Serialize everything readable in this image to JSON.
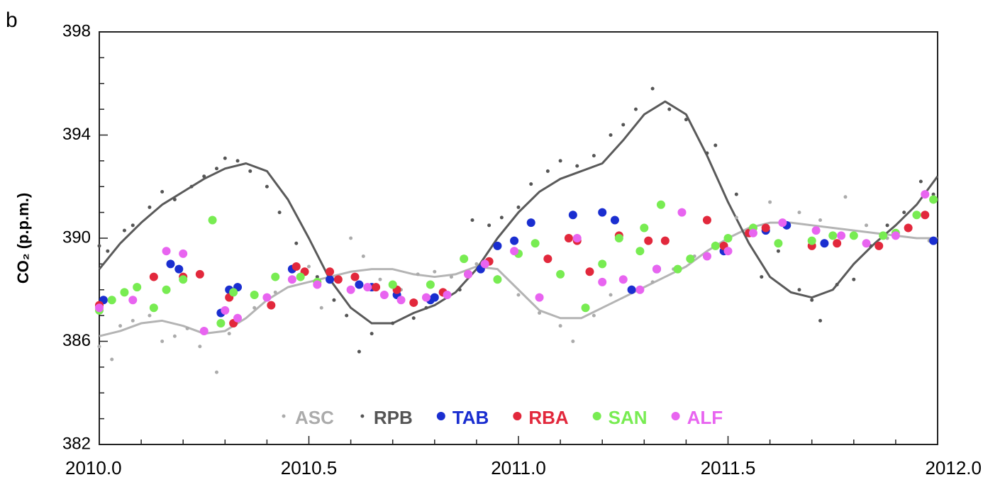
{
  "chart_data": {
    "type": "scatter",
    "panel_label": "b",
    "y_label": "CO₂ (p.p.m.)",
    "xlim": [
      2010.0,
      2012.0
    ],
    "xticks": [
      {
        "value": 2010.0,
        "label": "2010.0"
      },
      {
        "value": 2010.5,
        "label": "2010.5"
      },
      {
        "value": 2011.0,
        "label": "2011.0"
      },
      {
        "value": 2011.5,
        "label": "2011.5"
      },
      {
        "value": 2012.0,
        "label": "2012.0"
      }
    ],
    "x_minor_ticks": [
      2010.1,
      2010.2,
      2010.3,
      2010.4,
      2010.6,
      2010.7,
      2010.8,
      2010.9,
      2011.1,
      2011.2,
      2011.3,
      2011.4,
      2011.6,
      2011.7,
      2011.8,
      2011.9
    ],
    "ylim": [
      382,
      398
    ],
    "yticks": [
      382,
      386,
      390,
      394,
      398
    ],
    "y_minor_ticks": [
      383,
      384,
      385,
      387,
      388,
      389,
      391,
      392,
      393,
      395,
      396,
      397
    ],
    "legend": "lower center",
    "series": [
      {
        "name": "ASC",
        "color": "#ababab",
        "marker_size": 2.5,
        "x": [
          2010.0,
          2010.03,
          2010.05,
          2010.08,
          2010.12,
          2010.15,
          2010.18,
          2010.21,
          2010.24,
          2010.28,
          2010.31,
          2010.33,
          2010.37,
          2010.42,
          2010.46,
          2010.5,
          2010.53,
          2010.57,
          2010.6,
          2010.63,
          2010.67,
          2010.72,
          2010.76,
          2010.8,
          2010.84,
          2010.9,
          2010.95,
          2011.0,
          2011.05,
          2011.1,
          2011.13,
          2011.18,
          2011.22,
          2011.27,
          2011.32,
          2011.37,
          2011.42,
          2011.47,
          2011.52,
          2011.56,
          2011.6,
          2011.63,
          2011.67,
          2011.72,
          2011.78,
          2011.83,
          2011.88,
          2011.93,
          2011.98
        ],
        "values": [
          385.8,
          385.3,
          386.6,
          386.8,
          387.0,
          386.0,
          386.2,
          386.5,
          385.8,
          384.8,
          386.3,
          386.9,
          387.3,
          387.9,
          388.7,
          388.9,
          387.3,
          388.4,
          390.0,
          389.3,
          388.4,
          388.0,
          388.6,
          388.7,
          388.5,
          389.0,
          388.5,
          387.8,
          387.1,
          386.6,
          386.0,
          387.0,
          387.8,
          388.1,
          388.3,
          388.8,
          389.3,
          389.8,
          390.8,
          390.5,
          391.4,
          390.6,
          391.0,
          390.7,
          391.6,
          390.5,
          390.0,
          390.3,
          389.9
        ],
        "fit": {
          "color": "#b4b4b4",
          "x": [
            2010.0,
            2010.05,
            2010.1,
            2010.15,
            2010.2,
            2010.25,
            2010.3,
            2010.35,
            2010.4,
            2010.45,
            2010.5,
            2010.55,
            2010.6,
            2010.65,
            2010.7,
            2010.75,
            2010.8,
            2010.85,
            2010.9,
            2010.95,
            2011.0,
            2011.05,
            2011.1,
            2011.15,
            2011.2,
            2011.25,
            2011.3,
            2011.35,
            2011.4,
            2011.45,
            2011.5,
            2011.55,
            2011.6,
            2011.65,
            2011.7,
            2011.75,
            2011.8,
            2011.85,
            2011.9,
            2011.95,
            2012.0
          ],
          "values": [
            386.2,
            386.4,
            386.7,
            386.8,
            386.6,
            386.3,
            386.4,
            386.9,
            387.6,
            388.1,
            388.3,
            388.5,
            388.7,
            388.8,
            388.8,
            388.6,
            388.5,
            388.6,
            388.9,
            388.8,
            388.0,
            387.2,
            386.9,
            386.9,
            387.3,
            387.7,
            388.1,
            388.5,
            388.9,
            389.5,
            390.0,
            390.4,
            390.6,
            390.6,
            390.5,
            390.4,
            390.3,
            390.2,
            390.1,
            390.0,
            390.0
          ]
        }
      },
      {
        "name": "RPB",
        "color": "#555555",
        "marker_size": 2.5,
        "x": [
          2010.0,
          2010.02,
          2010.06,
          2010.08,
          2010.12,
          2010.15,
          2010.18,
          2010.22,
          2010.25,
          2010.28,
          2010.3,
          2010.33,
          2010.36,
          2010.4,
          2010.43,
          2010.47,
          2010.52,
          2010.56,
          2010.59,
          2010.62,
          2010.65,
          2010.7,
          2010.75,
          2010.78,
          2010.82,
          2010.86,
          2010.89,
          2010.93,
          2010.96,
          2011.0,
          2011.03,
          2011.07,
          2011.1,
          2011.14,
          2011.18,
          2011.22,
          2011.25,
          2011.28,
          2011.32,
          2011.36,
          2011.4,
          2011.45,
          2011.47,
          2011.52,
          2011.55,
          2011.58,
          2011.62,
          2011.67,
          2011.7,
          2011.72,
          2011.76,
          2011.8,
          2011.84,
          2011.88,
          2011.92,
          2011.96,
          2011.99
        ],
        "values": [
          389.7,
          389.5,
          390.3,
          390.5,
          391.2,
          391.8,
          391.5,
          392.0,
          392.4,
          392.7,
          393.1,
          393.0,
          392.6,
          392.0,
          391.0,
          389.8,
          388.5,
          387.6,
          387.0,
          385.6,
          386.3,
          386.7,
          386.9,
          387.3,
          387.8,
          388.0,
          390.7,
          390.5,
          390.8,
          391.2,
          392.1,
          392.6,
          393.0,
          392.8,
          393.2,
          394.0,
          394.4,
          395.0,
          395.8,
          395.0,
          394.6,
          393.3,
          393.6,
          391.7,
          390.3,
          388.5,
          389.5,
          388.0,
          387.6,
          386.8,
          388.2,
          388.4,
          389.7,
          390.5,
          391.0,
          392.2,
          391.7
        ],
        "fit": {
          "color": "#5a5a5a",
          "x": [
            2010.0,
            2010.05,
            2010.1,
            2010.15,
            2010.2,
            2010.25,
            2010.3,
            2010.35,
            2010.4,
            2010.45,
            2010.5,
            2010.55,
            2010.6,
            2010.65,
            2010.7,
            2010.75,
            2010.8,
            2010.85,
            2010.9,
            2010.95,
            2011.0,
            2011.05,
            2011.1,
            2011.15,
            2011.2,
            2011.25,
            2011.3,
            2011.35,
            2011.4,
            2011.45,
            2011.5,
            2011.55,
            2011.6,
            2011.65,
            2011.7,
            2011.75,
            2011.8,
            2011.85,
            2011.9,
            2011.95,
            2012.0
          ],
          "values": [
            388.8,
            389.8,
            390.6,
            391.3,
            391.8,
            392.3,
            392.7,
            392.9,
            392.6,
            391.5,
            390.0,
            388.4,
            387.3,
            386.7,
            386.7,
            387.1,
            387.4,
            387.9,
            388.8,
            390.0,
            391.0,
            391.8,
            392.3,
            392.6,
            392.9,
            393.8,
            394.8,
            395.3,
            394.8,
            393.2,
            391.4,
            389.8,
            388.5,
            387.9,
            387.7,
            388.0,
            389.0,
            389.8,
            390.5,
            391.3,
            392.4
          ]
        }
      },
      {
        "name": "TAB",
        "color": "#1a2ed0",
        "marker_size": 6,
        "x": [
          2010.01,
          2010.17,
          2010.19,
          2010.29,
          2010.31,
          2010.33,
          2010.46,
          2010.55,
          2010.62,
          2010.65,
          2010.71,
          2010.79,
          2010.8,
          2010.91,
          2010.95,
          2010.99,
          2011.03,
          2011.13,
          2011.2,
          2011.23,
          2011.27,
          2011.33,
          2011.49,
          2011.59,
          2011.64,
          2011.73,
          2011.99
        ],
        "values": [
          387.6,
          389.0,
          388.8,
          387.1,
          388.0,
          388.1,
          388.8,
          388.4,
          388.2,
          388.1,
          387.8,
          387.6,
          387.7,
          388.8,
          389.7,
          389.9,
          390.6,
          390.9,
          391.0,
          390.7,
          388.0,
          388.8,
          389.5,
          390.3,
          390.5,
          389.8,
          389.9
        ]
      },
      {
        "name": "RBA",
        "color": "#e2283c",
        "marker_size": 6,
        "x": [
          2010.0,
          2010.13,
          2010.2,
          2010.24,
          2010.31,
          2010.32,
          2010.41,
          2010.47,
          2010.49,
          2010.55,
          2010.57,
          2010.61,
          2010.66,
          2010.71,
          2010.75,
          2010.82,
          2010.88,
          2010.93,
          2011.07,
          2011.12,
          2011.14,
          2011.17,
          2011.24,
          2011.31,
          2011.35,
          2011.45,
          2011.49,
          2011.55,
          2011.59,
          2011.7,
          2011.76,
          2011.86,
          2011.93,
          2011.97
        ],
        "values": [
          387.4,
          388.5,
          388.5,
          388.6,
          387.7,
          386.7,
          387.4,
          388.9,
          388.7,
          388.7,
          388.4,
          388.5,
          388.1,
          388.0,
          387.5,
          387.9,
          388.6,
          389.1,
          389.2,
          390.0,
          389.9,
          388.7,
          390.1,
          389.9,
          389.9,
          390.7,
          389.7,
          390.2,
          390.4,
          389.7,
          389.8,
          389.7,
          390.4,
          390.9
        ]
      },
      {
        "name": "SAN",
        "color": "#78ec52",
        "marker_size": 6,
        "x": [
          2010.0,
          2010.03,
          2010.06,
          2010.09,
          2010.13,
          2010.16,
          2010.2,
          2010.27,
          2010.29,
          2010.32,
          2010.37,
          2010.42,
          2010.48,
          2010.52,
          2010.7,
          2010.79,
          2010.87,
          2010.95,
          2011.0,
          2011.04,
          2011.1,
          2011.16,
          2011.2,
          2011.24,
          2011.29,
          2011.3,
          2011.34,
          2011.38,
          2011.41,
          2011.47,
          2011.5,
          2011.56,
          2011.62,
          2011.7,
          2011.75,
          2011.8,
          2011.87,
          2011.9,
          2011.95,
          2011.99
        ],
        "values": [
          387.2,
          387.6,
          387.9,
          388.1,
          387.3,
          388.0,
          388.4,
          390.7,
          386.7,
          387.9,
          387.8,
          388.5,
          388.5,
          388.3,
          388.2,
          388.2,
          389.2,
          388.4,
          389.4,
          389.8,
          388.6,
          387.3,
          389.0,
          390.0,
          389.5,
          390.4,
          391.3,
          388.8,
          389.2,
          389.7,
          390.0,
          390.4,
          389.8,
          389.9,
          390.1,
          390.1,
          390.1,
          390.2,
          390.9,
          391.5
        ]
      },
      {
        "name": "ALF",
        "color": "#e864f0",
        "marker_size": 6,
        "x": [
          2010.0,
          2010.08,
          2010.16,
          2010.2,
          2010.25,
          2010.3,
          2010.33,
          2010.4,
          2010.46,
          2010.52,
          2010.6,
          2010.64,
          2010.68,
          2010.72,
          2010.78,
          2010.83,
          2010.88,
          2010.92,
          2010.99,
          2011.05,
          2011.14,
          2011.2,
          2011.25,
          2011.29,
          2011.33,
          2011.39,
          2011.45,
          2011.5,
          2011.56,
          2011.63,
          2011.71,
          2011.77,
          2011.83,
          2011.9,
          2011.97
        ],
        "values": [
          387.3,
          387.6,
          389.5,
          389.4,
          386.4,
          387.2,
          386.9,
          387.7,
          388.4,
          388.2,
          388.0,
          388.1,
          387.8,
          387.6,
          387.7,
          387.8,
          388.6,
          389.0,
          389.5,
          387.7,
          390.0,
          388.3,
          388.4,
          388.0,
          388.8,
          391.0,
          389.3,
          389.5,
          390.2,
          390.6,
          390.3,
          390.1,
          389.8,
          390.1,
          391.7
        ]
      }
    ]
  }
}
